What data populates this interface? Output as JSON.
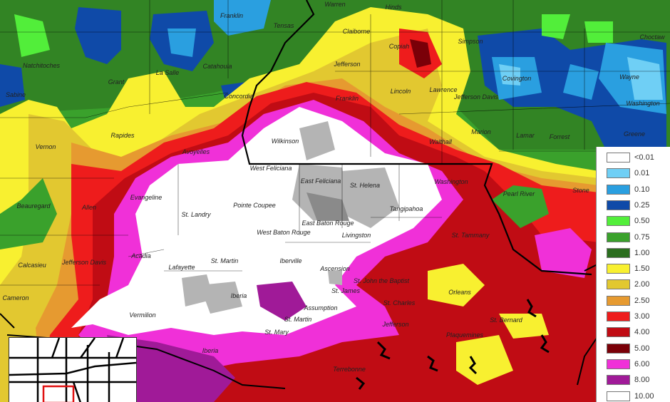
{
  "legend": {
    "items": [
      {
        "label": "<0.01",
        "color": "#ffffff"
      },
      {
        "label": "0.01",
        "color": "#6fcff5"
      },
      {
        "label": "0.10",
        "color": "#2a9fe0"
      },
      {
        "label": "0.25",
        "color": "#0f4aa8"
      },
      {
        "label": "0.50",
        "color": "#52ee3a"
      },
      {
        "label": "0.75",
        "color": "#3aa12c"
      },
      {
        "label": "1.00",
        "color": "#2b6e1f"
      },
      {
        "label": "1.50",
        "color": "#f8f030"
      },
      {
        "label": "2.00",
        "color": "#e2c830"
      },
      {
        "label": "2.50",
        "color": "#e69a30"
      },
      {
        "label": "3.00",
        "color": "#ee1c1c"
      },
      {
        "label": "4.00",
        "color": "#c00c14"
      },
      {
        "label": "5.00",
        "color": "#7a0008"
      },
      {
        "label": "6.00",
        "color": "#f030d8"
      },
      {
        "label": "8.00",
        "color": "#a01a98"
      },
      {
        "label": "10.00",
        "color": "#ffffff"
      }
    ]
  },
  "labels": {
    "warren": "Warren",
    "hinds": "Hinds",
    "franklin_la": "Franklin",
    "tensas": "Tensas",
    "claiborne": "Claiborne",
    "copiah": "Copiah",
    "simpson": "Simpson",
    "choctaw": "Choctaw",
    "natchitoches": "Natchitoches",
    "grant": "Grant",
    "la_salle": "La Salle",
    "catahoula": "Catahoula",
    "jefferson_ms": "Jefferson",
    "lincoln": "Lincoln",
    "lawrence": "Lawrence",
    "covington": "Covington",
    "jefferson_davis_ms": "Jefferson Davis",
    "wayne": "Wayne",
    "concordia": "Concordia",
    "franklin_ms": "Franklin",
    "sabine": "Sabine",
    "rapides": "Rapides",
    "vernon": "Vernon",
    "avoyelles": "Avoyelles",
    "wilkinson": "Wilkinson",
    "marion": "Marion",
    "walthall": "Walthall",
    "lamar": "Lamar",
    "forrest": "Forrest",
    "washington_ms": "Washington",
    "greene": "Greene",
    "west_feliciana": "West Feliciana",
    "east_feliciana": "East Feliciana",
    "st_helena": "St. Helena",
    "washington_la": "Washington",
    "pearl_river": "Pearl River",
    "stone": "Stone",
    "beauregard": "Beauregard",
    "allen": "Allen",
    "evangeline": "Evangeline",
    "st_landry": "St. Landry",
    "pointe_coupee": "Pointe Coupee",
    "east_baton_rouge": "East Baton Rouge",
    "west_baton_rouge": "West Baton Rouge",
    "tangipahoa": "Tangipahoa",
    "livingston": "Livingston",
    "st_tammany": "St. Tammany",
    "acadia": "Acadia",
    "jefferson_davis_la": "Jefferson Davis",
    "calcasieu": "Calcasieu",
    "lafayette": "Lafayette",
    "st_martin": "St. Martin",
    "iberville": "Iberville",
    "ascension": "Ascension",
    "orleans": "Orleans",
    "st_james": "St. James",
    "st_john": "St. John the Baptist",
    "st_charles": "St. Charles",
    "assumption": "Assumption",
    "iberia": "Iberia",
    "vermilion": "Vermilion",
    "cameron": "Cameron",
    "st_martin_s": "St. Martin",
    "st_mary": "St. Mary",
    "iberia_s": "Iberia",
    "jefferson_la": "Jefferson",
    "plaquemines": "Plaquemines",
    "st_bernard": "St. Bernard",
    "terrebonne": "Terrebonne"
  }
}
